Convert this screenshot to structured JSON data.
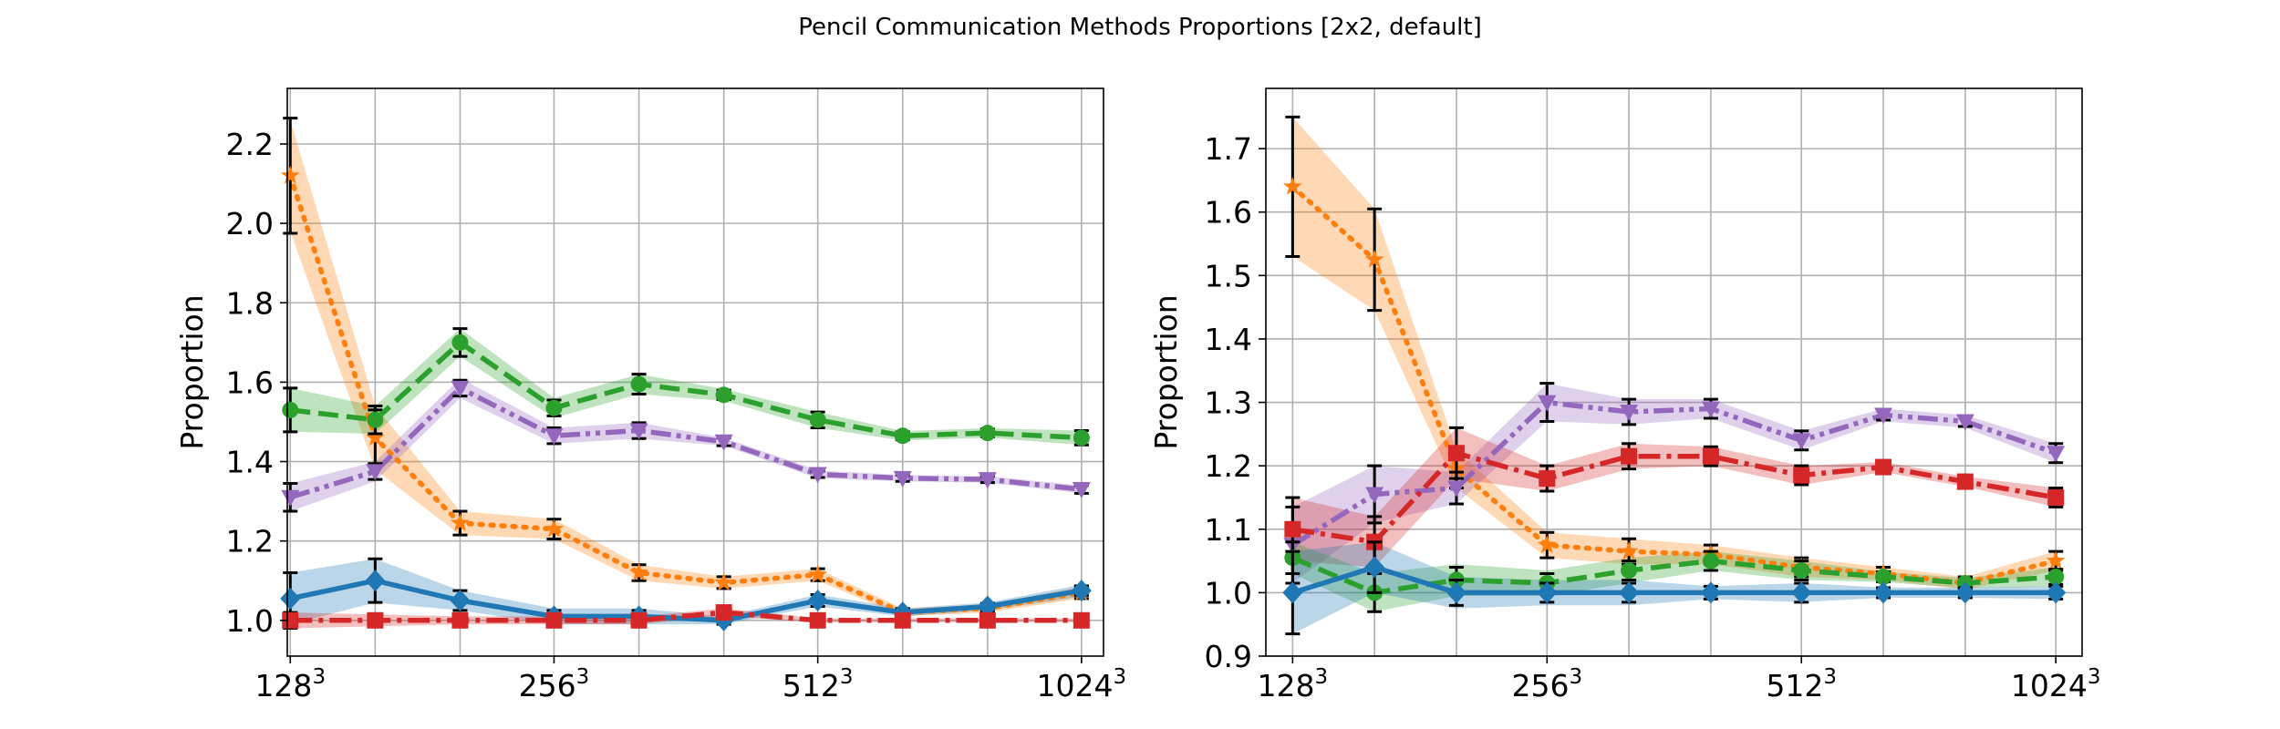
{
  "figure": {
    "title": "Pencil Communication Methods Proportions [2x2, default]"
  },
  "chart_data": [
    {
      "type": "line",
      "ylabel": "Proportion",
      "ylim": [
        0.91,
        2.34
      ],
      "yticks": [
        1.0,
        1.2,
        1.4,
        1.6,
        1.8,
        2.0,
        2.2
      ],
      "ytick_labels": [
        "1.0",
        "1.2",
        "1.4",
        "1.6",
        "1.8",
        "2.0",
        "2.2"
      ],
      "xlim": [
        127,
        1085
      ],
      "xscale": "log2",
      "xticks": [
        128,
        256,
        512,
        1024
      ],
      "xtick_labels": [
        {
          "base": "128",
          "exp": "3"
        },
        {
          "base": "256",
          "exp": "3"
        },
        {
          "base": "512",
          "exp": "3"
        },
        {
          "base": "1024",
          "exp": "3"
        }
      ],
      "x": [
        128,
        160,
        200,
        256,
        320,
        400,
        512,
        640,
        800,
        1024
      ],
      "grid": true,
      "series": [
        {
          "color": "#ff7f0e",
          "dash": "dotted",
          "marker": "star",
          "values": [
            2.12,
            1.46,
            1.245,
            1.23,
            1.12,
            1.095,
            1.115,
            1.02,
            1.03,
            1.07
          ],
          "band": [
            0.14,
            0.08,
            0.03,
            0.025,
            0.02,
            0.015,
            0.015,
            0.01,
            0.01,
            0.015
          ],
          "err": [
            0.145,
            0.07,
            0.03,
            0.025,
            0.02,
            0.015,
            0.015,
            0.01,
            0.01,
            0.015
          ]
        },
        {
          "color": "#2ca02c",
          "dash": "dashed",
          "marker": "circle",
          "values": [
            1.53,
            1.505,
            1.7,
            1.535,
            1.595,
            1.568,
            1.505,
            1.465,
            1.472,
            1.46
          ],
          "band": [
            0.055,
            0.035,
            0.035,
            0.025,
            0.025,
            0.015,
            0.02,
            0.012,
            0.012,
            0.018
          ],
          "err": [
            0.055,
            0.035,
            0.035,
            0.02,
            0.025,
            0.012,
            0.02,
            0.01,
            0.01,
            0.018
          ]
        },
        {
          "color": "#9467bd",
          "dash": "dashdotdot",
          "marker": "triangle-down",
          "values": [
            1.31,
            1.375,
            1.585,
            1.465,
            1.478,
            1.45,
            1.368,
            1.358,
            1.355,
            1.33
          ],
          "band": [
            0.035,
            0.025,
            0.025,
            0.02,
            0.02,
            0.01,
            0.01,
            0.008,
            0.008,
            0.01
          ],
          "err": [
            0.035,
            0.02,
            0.02,
            0.02,
            0.02,
            0.01,
            0.008,
            0.008,
            0.008,
            0.01
          ]
        },
        {
          "color": "#1f77b4",
          "dash": "solid",
          "marker": "diamond",
          "values": [
            1.055,
            1.1,
            1.05,
            1.01,
            1.01,
            1.0,
            1.05,
            1.02,
            1.035,
            1.075
          ],
          "band": [
            0.065,
            0.055,
            0.025,
            0.02,
            0.02,
            0.01,
            0.015,
            0.01,
            0.01,
            0.015
          ],
          "err": [
            0.065,
            0.055,
            0.025,
            0.015,
            0.015,
            0.01,
            0.015,
            0.008,
            0.008,
            0.012
          ]
        },
        {
          "color": "#d62728",
          "dash": "dashdot",
          "marker": "square",
          "values": [
            1.0,
            1.0,
            1.0,
            1.0,
            1.0,
            1.02,
            1.0,
            1.0,
            1.0,
            1.0
          ],
          "band": [
            0.02,
            0.015,
            0.01,
            0.01,
            0.01,
            0.01,
            0.005,
            0.005,
            0.005,
            0.005
          ],
          "err": [
            0.02,
            0.015,
            0.01,
            0.01,
            0.01,
            0.01,
            0.005,
            0.005,
            0.005,
            0.005
          ]
        }
      ]
    },
    {
      "type": "line",
      "ylabel": "Proportion",
      "ylim": [
        0.9,
        1.795
      ],
      "yticks": [
        0.9,
        1.0,
        1.1,
        1.2,
        1.3,
        1.4,
        1.5,
        1.6,
        1.7
      ],
      "ytick_labels": [
        "0.9",
        "1.0",
        "1.1",
        "1.2",
        "1.3",
        "1.4",
        "1.5",
        "1.6",
        "1.7"
      ],
      "xlim": [
        119,
        1100
      ],
      "xscale": "log2",
      "xticks": [
        128,
        256,
        512,
        1024
      ],
      "xtick_labels": [
        {
          "base": "128",
          "exp": "3"
        },
        {
          "base": "256",
          "exp": "3"
        },
        {
          "base": "512",
          "exp": "3"
        },
        {
          "base": "1024",
          "exp": "3"
        }
      ],
      "x": [
        128,
        160,
        200,
        256,
        320,
        400,
        512,
        640,
        800,
        1024
      ],
      "grid": true,
      "series": [
        {
          "color": "#ff7f0e",
          "dash": "dotted",
          "marker": "star",
          "values": [
            1.64,
            1.525,
            1.195,
            1.075,
            1.065,
            1.06,
            1.04,
            1.03,
            1.015,
            1.05
          ],
          "band": [
            0.11,
            0.08,
            0.03,
            0.02,
            0.02,
            0.015,
            0.015,
            0.01,
            0.01,
            0.015
          ],
          "err": [
            0.11,
            0.08,
            0.03,
            0.02,
            0.02,
            0.015,
            0.015,
            0.01,
            0.01,
            0.015
          ]
        },
        {
          "color": "#9467bd",
          "dash": "dashdotdot",
          "marker": "triangle-down",
          "values": [
            1.075,
            1.155,
            1.165,
            1.3,
            1.285,
            1.29,
            1.24,
            1.28,
            1.27,
            1.22
          ],
          "band": [
            0.06,
            0.045,
            0.025,
            0.03,
            0.02,
            0.015,
            0.015,
            0.01,
            0.01,
            0.015
          ],
          "err": [
            0.06,
            0.045,
            0.025,
            0.03,
            0.02,
            0.015,
            0.015,
            0.008,
            0.008,
            0.015
          ]
        },
        {
          "color": "#d62728",
          "dash": "dashdot",
          "marker": "square",
          "values": [
            1.1,
            1.08,
            1.22,
            1.18,
            1.215,
            1.215,
            1.185,
            1.198,
            1.175,
            1.15
          ],
          "band": [
            0.05,
            0.04,
            0.04,
            0.02,
            0.02,
            0.015,
            0.015,
            0.008,
            0.008,
            0.015
          ],
          "err": [
            0.05,
            0.04,
            0.04,
            0.02,
            0.02,
            0.015,
            0.015,
            0.008,
            0.008,
            0.015
          ]
        },
        {
          "color": "#2ca02c",
          "dash": "dashed",
          "marker": "circle",
          "values": [
            1.055,
            1.0,
            1.02,
            1.015,
            1.035,
            1.05,
            1.035,
            1.025,
            1.015,
            1.025
          ],
          "band": [
            0.025,
            0.03,
            0.025,
            0.02,
            0.02,
            0.015,
            0.015,
            0.008,
            0.008,
            0.015
          ],
          "err": [
            0.025,
            0.03,
            0.02,
            0.015,
            0.015,
            0.015,
            0.015,
            0.008,
            0.008,
            0.012
          ]
        },
        {
          "color": "#1f77b4",
          "dash": "solid",
          "marker": "diamond",
          "values": [
            1.0,
            1.04,
            1.0,
            1.0,
            1.0,
            1.0,
            1.0,
            1.0,
            1.0,
            1.0
          ],
          "band": [
            0.065,
            0.04,
            0.025,
            0.02,
            0.02,
            0.01,
            0.015,
            0.008,
            0.008,
            0.01
          ],
          "err": [
            0.065,
            0.04,
            0.02,
            0.015,
            0.015,
            0.01,
            0.015,
            0.008,
            0.008,
            0.01
          ]
        }
      ]
    }
  ]
}
